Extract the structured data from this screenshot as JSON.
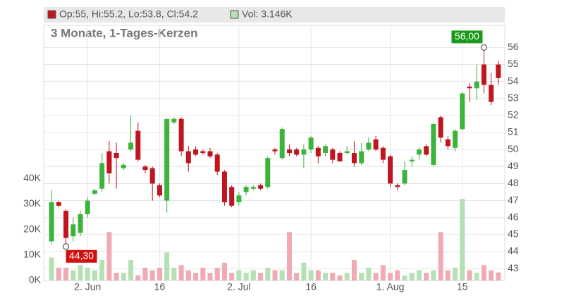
{
  "chart_data": {
    "type": "candlestick",
    "header": {
      "ohlc": "Op:55, Hi:55.2, Lo:53.8, Cl:54.2",
      "volume": "Vol: 3.146K"
    },
    "subtitle": "3 Monate, 1-Tages-Kerzen",
    "up_color": "#3cb43c",
    "down_color": "#c0141e",
    "volume_up_color": "#b4e0b4",
    "volume_down_color": "#f0aab4",
    "grid": true,
    "categories": [
      null,
      null,
      null,
      null,
      null,
      "2. Jun",
      null,
      null,
      null,
      null,
      null,
      null,
      null,
      null,
      null,
      "16",
      null,
      null,
      null,
      null,
      null,
      null,
      null,
      null,
      null,
      null,
      "2. Jul",
      null,
      null,
      null,
      null,
      null,
      null,
      null,
      null,
      null,
      "16",
      null,
      null,
      null,
      null,
      null,
      null,
      null,
      null,
      null,
      null,
      "1. Aug",
      null,
      null,
      null,
      null,
      null,
      null,
      null,
      null,
      null,
      "15",
      null,
      null,
      null,
      null,
      null
    ],
    "open": [
      44.6,
      46.9,
      46.4,
      44.9,
      45.1,
      46.2,
      47.4,
      47.7,
      49.9,
      49.8,
      48.9,
      50.0,
      51.1,
      49.0,
      48.9,
      47.9,
      47.0,
      51.6,
      51.8,
      49.9,
      50.0,
      49.9,
      49.9,
      49.7,
      48.7,
      47.8,
      46.9,
      47.5,
      47.7,
      47.9,
      47.8,
      50.0,
      49.5,
      50.0,
      50.0,
      49.7,
      50.0,
      50.1,
      49.8,
      50.0,
      49.8,
      49.8,
      49.8,
      49.2,
      50.0,
      50.6,
      50.1,
      49.6,
      47.9,
      48.0,
      49.3,
      49.7,
      50.2,
      49.1,
      51.9,
      50.6,
      50.1,
      51.2,
      53.7,
      53.6,
      55.0,
      53.8,
      55.0
    ],
    "high": [
      47.6,
      47.0,
      46.5,
      46.0,
      46.4,
      47.2,
      47.7,
      49.8,
      50.5,
      50.4,
      49.2,
      52.0,
      51.6,
      49.1,
      49.0,
      48.0,
      51.8,
      51.9,
      51.9,
      50.2,
      50.2,
      50.0,
      50.1,
      49.8,
      48.8,
      47.9,
      47.5,
      47.9,
      47.9,
      48.0,
      49.6,
      50.1,
      51.3,
      50.3,
      50.1,
      50.3,
      50.8,
      50.2,
      50.3,
      50.1,
      49.9,
      50.2,
      50.5,
      50.4,
      50.7,
      50.8,
      50.2,
      49.7,
      48.0,
      49.3,
      49.6,
      50.1,
      50.3,
      51.6,
      52.0,
      50.8,
      51.2,
      53.4,
      53.9,
      55.0,
      56.0,
      54.5,
      55.2
    ],
    "low": [
      44.4,
      46.6,
      44.3,
      44.6,
      44.9,
      46.0,
      47.3,
      47.5,
      48.0,
      47.7,
      48.8,
      49.9,
      49.3,
      48.6,
      47.0,
      47.2,
      46.3,
      51.5,
      49.6,
      48.7,
      49.6,
      49.7,
      49.5,
      48.5,
      46.7,
      46.6,
      46.7,
      47.3,
      47.6,
      47.6,
      47.7,
      49.7,
      49.4,
      49.6,
      49.6,
      48.9,
      49.8,
      49.2,
      49.6,
      49.2,
      49.3,
      49.7,
      49.0,
      49.1,
      49.9,
      49.9,
      49.2,
      47.8,
      47.6,
      47.9,
      49.0,
      49.4,
      49.6,
      49.0,
      50.4,
      50.0,
      49.9,
      51.1,
      52.8,
      52.9,
      53.3,
      52.6,
      53.8
    ],
    "close": [
      46.9,
      46.7,
      44.8,
      45.6,
      46.2,
      47.0,
      47.6,
      49.2,
      48.6,
      49.5,
      49.1,
      50.4,
      49.4,
      48.8,
      48.0,
      47.3,
      51.8,
      51.8,
      49.9,
      49.2,
      49.7,
      49.8,
      49.6,
      48.7,
      46.9,
      46.7,
      47.3,
      47.8,
      47.8,
      47.7,
      49.5,
      49.9,
      51.2,
      49.8,
      49.7,
      50.0,
      50.7,
      49.6,
      50.2,
      49.4,
      49.3,
      49.9,
      49.2,
      49.9,
      50.4,
      50.0,
      49.4,
      48.0,
      47.8,
      48.8,
      49.4,
      50.0,
      49.7,
      51.5,
      50.7,
      50.2,
      51.1,
      53.3,
      53.6,
      54.0,
      53.8,
      52.8,
      54.2
    ],
    "volume": [
      9,
      5,
      5,
      4,
      6,
      5,
      4,
      8,
      19,
      3,
      3,
      8,
      2,
      5,
      4,
      5,
      11,
      5,
      6,
      4,
      3,
      5,
      3,
      5,
      7,
      3,
      4,
      3,
      4,
      3,
      5,
      4,
      4,
      19,
      3,
      7,
      4,
      4,
      3,
      3,
      2,
      3,
      8,
      3,
      5,
      3,
      6,
      3,
      4,
      2,
      3,
      4,
      3,
      4,
      19,
      4,
      5,
      32,
      4,
      3,
      6,
      4,
      3.146
    ],
    "annotations": [
      {
        "label": "56,00",
        "value": 56.0
      },
      {
        "label": "44,30",
        "value": 44.3
      }
    ],
    "ylim": [
      42.3,
      57.3
    ],
    "yticks": [
      43,
      44,
      45,
      46,
      47,
      48,
      49,
      50,
      51,
      52,
      53,
      54,
      55,
      56
    ],
    "y2lim": [
      0,
      100
    ],
    "y2ticks": [
      {
        "value": 0,
        "label": "0K"
      },
      {
        "value": 10,
        "label": "10K"
      },
      {
        "value": 20,
        "label": "20K"
      },
      {
        "value": 30,
        "label": "30K"
      },
      {
        "value": 40,
        "label": "40K"
      }
    ]
  }
}
